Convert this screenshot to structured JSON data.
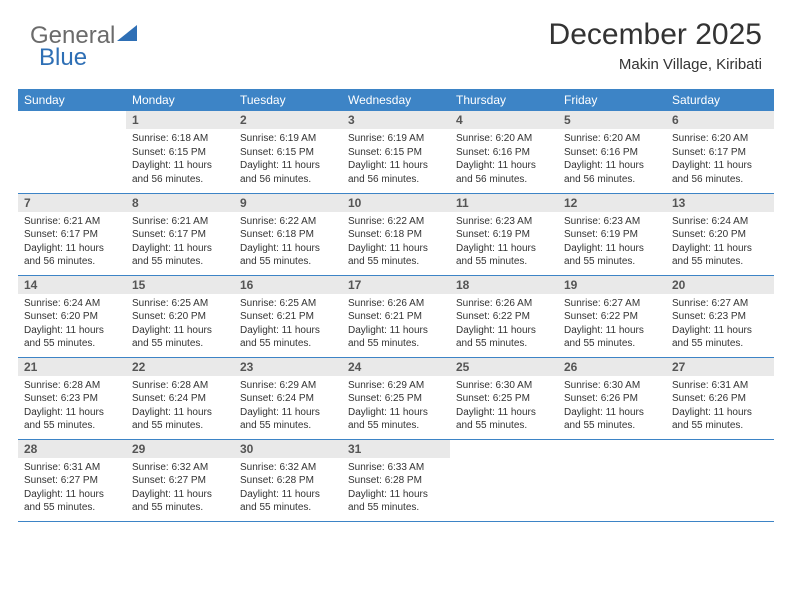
{
  "brand": {
    "part1": "General",
    "part2": "Blue",
    "part2_color": "#2e6fb5"
  },
  "title": "December 2025",
  "location": "Makin Village, Kiribati",
  "colors": {
    "header_bg": "#3d84c6",
    "header_text": "#ffffff",
    "daynum_bg": "#e9e9e9",
    "daynum_text": "#555555",
    "body_text": "#333333",
    "row_border": "#3d84c6",
    "page_bg": "#ffffff",
    "logo_gray": "#6b6b6b"
  },
  "days_of_week": [
    "Sunday",
    "Monday",
    "Tuesday",
    "Wednesday",
    "Thursday",
    "Friday",
    "Saturday"
  ],
  "start_blanks": 1,
  "cells": [
    {
      "n": "1",
      "l": [
        "Sunrise: 6:18 AM",
        "Sunset: 6:15 PM",
        "Daylight: 11 hours and 56 minutes."
      ]
    },
    {
      "n": "2",
      "l": [
        "Sunrise: 6:19 AM",
        "Sunset: 6:15 PM",
        "Daylight: 11 hours and 56 minutes."
      ]
    },
    {
      "n": "3",
      "l": [
        "Sunrise: 6:19 AM",
        "Sunset: 6:15 PM",
        "Daylight: 11 hours and 56 minutes."
      ]
    },
    {
      "n": "4",
      "l": [
        "Sunrise: 6:20 AM",
        "Sunset: 6:16 PM",
        "Daylight: 11 hours and 56 minutes."
      ]
    },
    {
      "n": "5",
      "l": [
        "Sunrise: 6:20 AM",
        "Sunset: 6:16 PM",
        "Daylight: 11 hours and 56 minutes."
      ]
    },
    {
      "n": "6",
      "l": [
        "Sunrise: 6:20 AM",
        "Sunset: 6:17 PM",
        "Daylight: 11 hours and 56 minutes."
      ]
    },
    {
      "n": "7",
      "l": [
        "Sunrise: 6:21 AM",
        "Sunset: 6:17 PM",
        "Daylight: 11 hours and 56 minutes."
      ]
    },
    {
      "n": "8",
      "l": [
        "Sunrise: 6:21 AM",
        "Sunset: 6:17 PM",
        "Daylight: 11 hours and 55 minutes."
      ]
    },
    {
      "n": "9",
      "l": [
        "Sunrise: 6:22 AM",
        "Sunset: 6:18 PM",
        "Daylight: 11 hours and 55 minutes."
      ]
    },
    {
      "n": "10",
      "l": [
        "Sunrise: 6:22 AM",
        "Sunset: 6:18 PM",
        "Daylight: 11 hours and 55 minutes."
      ]
    },
    {
      "n": "11",
      "l": [
        "Sunrise: 6:23 AM",
        "Sunset: 6:19 PM",
        "Daylight: 11 hours and 55 minutes."
      ]
    },
    {
      "n": "12",
      "l": [
        "Sunrise: 6:23 AM",
        "Sunset: 6:19 PM",
        "Daylight: 11 hours and 55 minutes."
      ]
    },
    {
      "n": "13",
      "l": [
        "Sunrise: 6:24 AM",
        "Sunset: 6:20 PM",
        "Daylight: 11 hours and 55 minutes."
      ]
    },
    {
      "n": "14",
      "l": [
        "Sunrise: 6:24 AM",
        "Sunset: 6:20 PM",
        "Daylight: 11 hours and 55 minutes."
      ]
    },
    {
      "n": "15",
      "l": [
        "Sunrise: 6:25 AM",
        "Sunset: 6:20 PM",
        "Daylight: 11 hours and 55 minutes."
      ]
    },
    {
      "n": "16",
      "l": [
        "Sunrise: 6:25 AM",
        "Sunset: 6:21 PM",
        "Daylight: 11 hours and 55 minutes."
      ]
    },
    {
      "n": "17",
      "l": [
        "Sunrise: 6:26 AM",
        "Sunset: 6:21 PM",
        "Daylight: 11 hours and 55 minutes."
      ]
    },
    {
      "n": "18",
      "l": [
        "Sunrise: 6:26 AM",
        "Sunset: 6:22 PM",
        "Daylight: 11 hours and 55 minutes."
      ]
    },
    {
      "n": "19",
      "l": [
        "Sunrise: 6:27 AM",
        "Sunset: 6:22 PM",
        "Daylight: 11 hours and 55 minutes."
      ]
    },
    {
      "n": "20",
      "l": [
        "Sunrise: 6:27 AM",
        "Sunset: 6:23 PM",
        "Daylight: 11 hours and 55 minutes."
      ]
    },
    {
      "n": "21",
      "l": [
        "Sunrise: 6:28 AM",
        "Sunset: 6:23 PM",
        "Daylight: 11 hours and 55 minutes."
      ]
    },
    {
      "n": "22",
      "l": [
        "Sunrise: 6:28 AM",
        "Sunset: 6:24 PM",
        "Daylight: 11 hours and 55 minutes."
      ]
    },
    {
      "n": "23",
      "l": [
        "Sunrise: 6:29 AM",
        "Sunset: 6:24 PM",
        "Daylight: 11 hours and 55 minutes."
      ]
    },
    {
      "n": "24",
      "l": [
        "Sunrise: 6:29 AM",
        "Sunset: 6:25 PM",
        "Daylight: 11 hours and 55 minutes."
      ]
    },
    {
      "n": "25",
      "l": [
        "Sunrise: 6:30 AM",
        "Sunset: 6:25 PM",
        "Daylight: 11 hours and 55 minutes."
      ]
    },
    {
      "n": "26",
      "l": [
        "Sunrise: 6:30 AM",
        "Sunset: 6:26 PM",
        "Daylight: 11 hours and 55 minutes."
      ]
    },
    {
      "n": "27",
      "l": [
        "Sunrise: 6:31 AM",
        "Sunset: 6:26 PM",
        "Daylight: 11 hours and 55 minutes."
      ]
    },
    {
      "n": "28",
      "l": [
        "Sunrise: 6:31 AM",
        "Sunset: 6:27 PM",
        "Daylight: 11 hours and 55 minutes."
      ]
    },
    {
      "n": "29",
      "l": [
        "Sunrise: 6:32 AM",
        "Sunset: 6:27 PM",
        "Daylight: 11 hours and 55 minutes."
      ]
    },
    {
      "n": "30",
      "l": [
        "Sunrise: 6:32 AM",
        "Sunset: 6:28 PM",
        "Daylight: 11 hours and 55 minutes."
      ]
    },
    {
      "n": "31",
      "l": [
        "Sunrise: 6:33 AM",
        "Sunset: 6:28 PM",
        "Daylight: 11 hours and 55 minutes."
      ]
    }
  ]
}
